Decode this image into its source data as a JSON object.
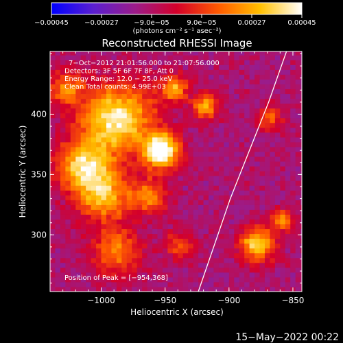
{
  "chart_data": {
    "type": "heatmap",
    "title": "Reconstructed RHESSI Image",
    "xlabel": "Heliocentric X (arcsec)",
    "ylabel": "Heliocentric Y (arcsec)",
    "xlim": [
      -1040,
      -843
    ],
    "ylim": [
      253,
      452
    ],
    "xticks": [
      -1000,
      -950,
      -900,
      -850
    ],
    "xtick_labels": [
      "−1000",
      "−950",
      "−900",
      "−850"
    ],
    "yticks": [
      300,
      350,
      400
    ],
    "ytick_labels": [
      "300",
      "350",
      "400"
    ],
    "colorbar": {
      "label": "(photons cm⁻² s⁻¹ asec⁻²)",
      "range": [
        -0.00045,
        0.00045
      ],
      "ticks": [
        -0.00045,
        -0.00027,
        -9e-05,
        9e-05,
        0.00027,
        0.00045
      ],
      "tick_labels": [
        "−0.00045",
        "−0.00027",
        "−9.0e−05",
        "9.0e−05",
        "0.00027",
        "0.00045"
      ],
      "colors": [
        "#0000ff",
        "#5a1fd0",
        "#9b1c8a",
        "#d4002a",
        "#ff5a00",
        "#ffc000",
        "#ffffff"
      ]
    },
    "annotations": [
      "7−Oct−2012 21:01:56.000 to 21:07:56.000",
      "Detectors: 3F 5F 6F 7F 8F, Att 0",
      "Energy Range: 12.0 − 25.0 keV",
      "Clean     Total counts: 4.99E+03"
    ],
    "peak_label": "Position of Peak = [−954,368]",
    "peak": [
      -954,
      368
    ],
    "limb_curve": [
      [
        -924,
        253
      ],
      [
        -912,
        290
      ],
      [
        -899,
        330
      ],
      [
        -884,
        370
      ],
      [
        -869,
        410
      ],
      [
        -855,
        452
      ]
    ],
    "sources": [
      {
        "x": -955,
        "y": 368,
        "sigma": 10,
        "amp": 1.0
      },
      {
        "x": -990,
        "y": 395,
        "sigma": 20,
        "amp": 0.8
      },
      {
        "x": -1015,
        "y": 355,
        "sigma": 15,
        "amp": 0.7
      },
      {
        "x": -1000,
        "y": 330,
        "sigma": 14,
        "amp": 0.6
      },
      {
        "x": -965,
        "y": 330,
        "sigma": 10,
        "amp": 0.5
      },
      {
        "x": -920,
        "y": 405,
        "sigma": 7,
        "amp": 0.6
      },
      {
        "x": -870,
        "y": 395,
        "sigma": 7,
        "amp": 0.4
      },
      {
        "x": -880,
        "y": 290,
        "sigma": 10,
        "amp": 0.7
      },
      {
        "x": -860,
        "y": 310,
        "sigma": 6,
        "amp": 0.5
      },
      {
        "x": -990,
        "y": 285,
        "sigma": 14,
        "amp": 0.45
      },
      {
        "x": -940,
        "y": 290,
        "sigma": 8,
        "amp": 0.4
      },
      {
        "x": -1030,
        "y": 420,
        "sigma": 10,
        "amp": 0.45
      },
      {
        "x": -945,
        "y": 420,
        "sigma": 8,
        "amp": 0.55
      }
    ]
  },
  "footer": {
    "timestamp": "15−May−2022 00:22"
  }
}
